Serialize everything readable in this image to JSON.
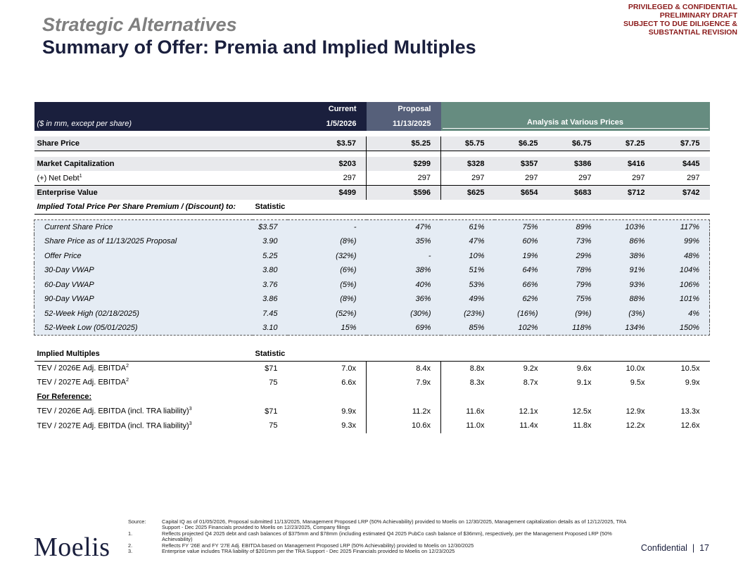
{
  "confidential": [
    "PRIVILEGED & CONFIDENTIAL",
    "PRELIMINARY DRAFT",
    "SUBJECT TO DUE DILIGENCE &",
    "SUBSTANTIAL REVISION"
  ],
  "title": "Strategic Alternatives",
  "subtitle": "Summary of Offer: Premia and Implied Multiples",
  "header": {
    "units": "($ in mm, except per share)",
    "current": "Current",
    "current_date": "1/5/2026",
    "proposal": "Proposal",
    "proposal_date": "11/13/2025",
    "analysis": "Analysis at Various Prices"
  },
  "share_price": {
    "label": "Share Price",
    "values": [
      "$3.57",
      "$5.25",
      "$5.75",
      "$6.25",
      "$6.75",
      "$7.25",
      "$7.75"
    ]
  },
  "market_cap": {
    "label": "Market Capitalization",
    "values": [
      "$203",
      "$299",
      "$328",
      "$357",
      "$386",
      "$416",
      "$445"
    ]
  },
  "net_debt": {
    "label": "(+) Net Debt",
    "sup": "1",
    "values": [
      "297",
      "297",
      "297",
      "297",
      "297",
      "297",
      "297"
    ]
  },
  "ev": {
    "label": "Enterprise Value",
    "values": [
      "$499",
      "$596",
      "$625",
      "$654",
      "$683",
      "$712",
      "$742"
    ]
  },
  "premium_section": {
    "label": "Implied Total Price Per Share Premium / (Discount) to:",
    "stat": "Statistic"
  },
  "premium_rows": [
    {
      "label": "Current Share Price",
      "stat": "$3.57",
      "values": [
        "-",
        "47%",
        "61%",
        "75%",
        "89%",
        "103%",
        "117%"
      ]
    },
    {
      "label": "Share Price as of 11/13/2025 Proposal",
      "stat": "3.90",
      "values": [
        "(8%)",
        "35%",
        "47%",
        "60%",
        "73%",
        "86%",
        "99%"
      ]
    },
    {
      "label": "Offer Price",
      "stat": "5.25",
      "values": [
        "(32%)",
        "-",
        "10%",
        "19%",
        "29%",
        "38%",
        "48%"
      ]
    },
    {
      "label": "30-Day VWAP",
      "stat": "3.80",
      "values": [
        "(6%)",
        "38%",
        "51%",
        "64%",
        "78%",
        "91%",
        "104%"
      ]
    },
    {
      "label": "60-Day VWAP",
      "stat": "3.76",
      "values": [
        "(5%)",
        "40%",
        "53%",
        "66%",
        "79%",
        "93%",
        "106%"
      ]
    },
    {
      "label": "90-Day VWAP",
      "stat": "3.86",
      "values": [
        "(8%)",
        "36%",
        "49%",
        "62%",
        "75%",
        "88%",
        "101%"
      ]
    },
    {
      "label": "52-Week High (02/18/2025)",
      "stat": "7.45",
      "values": [
        "(52%)",
        "(30%)",
        "(23%)",
        "(16%)",
        "(9%)",
        "(3%)",
        "4%"
      ]
    },
    {
      "label": "52-Week Low (05/01/2025)",
      "stat": "3.10",
      "values": [
        "15%",
        "69%",
        "85%",
        "102%",
        "118%",
        "134%",
        "150%"
      ]
    }
  ],
  "multiples_section": {
    "label": "Implied Multiples",
    "stat": "Statistic"
  },
  "multiples_rows": [
    {
      "label": "TEV / 2026E Adj. EBITDA",
      "sup": "2",
      "stat": "$71",
      "values": [
        "7.0x",
        "8.4x",
        "8.8x",
        "9.2x",
        "9.6x",
        "10.0x",
        "10.5x"
      ]
    },
    {
      "label": "TEV / 2027E Adj. EBITDA",
      "sup": "2",
      "stat": "75",
      "values": [
        "6.6x",
        "7.9x",
        "8.3x",
        "8.7x",
        "9.1x",
        "9.5x",
        "9.9x"
      ]
    }
  ],
  "reference_label": "For Reference:",
  "reference_rows": [
    {
      "label": "TEV / 2026E Adj. EBITDA (incl. TRA liability)",
      "sup": "3",
      "stat": "$71",
      "values": [
        "9.9x",
        "11.2x",
        "11.6x",
        "12.1x",
        "12.5x",
        "12.9x",
        "13.3x"
      ]
    },
    {
      "label": "TEV / 2027E Adj. EBITDA (incl. TRA liability)",
      "sup": "3",
      "stat": "75",
      "values": [
        "9.3x",
        "10.6x",
        "11.0x",
        "11.4x",
        "11.8x",
        "12.2x",
        "12.6x"
      ]
    }
  ],
  "notes": [
    {
      "k": "Source:",
      "v": "Capital IQ as of 01/05/2026, Proposal submitted 11/13/2025, Management Proposed LRP (50% Achievability) provided to Moelis on 12/30/2025, Management capitalization details as of 12/12/2025, TRA Support - Dec 2025 Financials provided to Moelis on 12/23/2025, Company filings"
    },
    {
      "k": "1.",
      "v": "Reflects projected Q4 2025 debt and cash balances of $375mm and $78mm (including estimated Q4 2025 PubCo cash balance of $36mm), respectively, per the Management Proposed LRP (50% Achievability)"
    },
    {
      "k": "2.",
      "v": "Reflects FY '26E and FY '27E Adj. EBITDA based on Management Proposed LRP (50% Achievability) provided to Moelis on 12/30/2025"
    },
    {
      "k": "3.",
      "v": "Enterprise value includes TRA liability of $201mm per the TRA Support - Dec 2025 Financials provided to Moelis on 12/23/2025"
    }
  ],
  "logo": "Moelis",
  "footer": {
    "label": "Confidential",
    "sep": "|",
    "page": "17"
  }
}
